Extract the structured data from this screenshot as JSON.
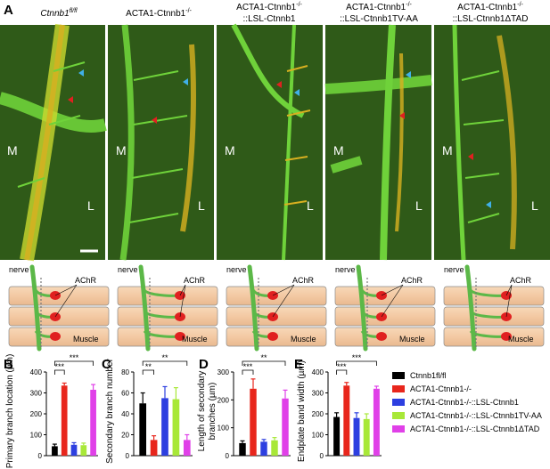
{
  "panel_a": {
    "letter": "A",
    "region_left": "M",
    "region_right": "L",
    "columns": [
      {
        "title_line1": "Ctnnb1",
        "title_sup": "fl/fl",
        "title_line2": ""
      },
      {
        "title_line1": "ACTA1-Ctnnb1",
        "title_sup": "-/-",
        "title_line2": ""
      },
      {
        "title_line1": "ACTA1-Ctnnb1",
        "title_sup": "-/-",
        "title_line2": "::LSL-Ctnnb1"
      },
      {
        "title_line1": "ACTA1-Ctnnb1",
        "title_sup": "-/-",
        "title_line2": "::LSL-Ctnnb1TV-AA"
      },
      {
        "title_line1": "ACTA1-Ctnnb1",
        "title_sup": "-/-",
        "title_line2": "::LSL-Ctnnb1ΔTAD"
      }
    ],
    "colors": {
      "background": "#2f5a18",
      "nerve": "#6fd23a",
      "endplate": "#e0c020",
      "arrow_red": "#e02020",
      "arrow_blue": "#40b0e8"
    }
  },
  "schematic": {
    "nerve_label": "nerve",
    "achr_label": "AChR",
    "muscle_label": "Muscle",
    "colors": {
      "fiber": "#f3c9a3",
      "nerve": "#5cb848",
      "achr": "#e02020"
    }
  },
  "panels": {
    "B": {
      "letter": "B",
      "ylabel": "Primary branch location (µm)",
      "significance": [
        "***",
        "***"
      ]
    },
    "C": {
      "letter": "C",
      "ylabel_line1": "Secondary branch number",
      "ylabel_line2": "",
      "significance": [
        "**",
        "**"
      ]
    },
    "D": {
      "letter": "D",
      "ylabel_line1": "Length of secondary",
      "ylabel_line2": "branches (µm)",
      "significance": [
        "***",
        "**"
      ]
    },
    "E": {
      "letter": "E",
      "ylabel": "Endplate band width (µm)",
      "significance": [
        "***",
        "***"
      ]
    }
  },
  "legend": [
    {
      "label": "Ctnnb1fl/fl",
      "color": "#000000"
    },
    {
      "label": "ACTA1-Ctnnb1-/-",
      "color": "#e8261c"
    },
    {
      "label": "ACTA1-Ctnnb1-/-::LSL-Ctnnb1",
      "color": "#2d3fe0"
    },
    {
      "label": "ACTA1-Ctnnb1-/-::LSL-Ctnnb1TV-AA",
      "color": "#a8e838"
    },
    {
      "label": "ACTA1-Ctnnb1-/-::LSL-Ctnnb1ΔTAD",
      "color": "#e040e8"
    }
  ],
  "chart_data": [
    {
      "type": "bar",
      "panel": "B",
      "ylabel": "Primary branch location (µm)",
      "ylim": [
        0,
        400
      ],
      "yticks": [
        0,
        100,
        200,
        300,
        400
      ],
      "values": [
        45,
        335,
        52,
        50,
        315
      ],
      "errors": [
        10,
        12,
        10,
        10,
        25
      ],
      "colors": [
        "#000000",
        "#e8261c",
        "#2d3fe0",
        "#a8e838",
        "#e040e8"
      ]
    },
    {
      "type": "bar",
      "panel": "C",
      "ylabel": "Secondary branch number",
      "ylim": [
        0,
        80
      ],
      "yticks": [
        0,
        20,
        40,
        60,
        80
      ],
      "values": [
        50,
        15,
        55,
        54,
        15
      ],
      "errors": [
        10,
        4,
        11,
        11,
        5
      ],
      "colors": [
        "#000000",
        "#e8261c",
        "#2d3fe0",
        "#a8e838",
        "#e040e8"
      ]
    },
    {
      "type": "bar",
      "panel": "D",
      "ylabel": "Length of secondary branches (µm)",
      "ylim": [
        0,
        300
      ],
      "yticks": [
        0,
        100,
        200,
        300
      ],
      "values": [
        45,
        240,
        50,
        55,
        205
      ],
      "errors": [
        8,
        35,
        8,
        10,
        30
      ],
      "colors": [
        "#000000",
        "#e8261c",
        "#2d3fe0",
        "#a8e838",
        "#e040e8"
      ]
    },
    {
      "type": "bar",
      "panel": "E",
      "ylabel": "Endplate band width (µm)",
      "ylim": [
        0,
        400
      ],
      "yticks": [
        0,
        100,
        200,
        300,
        400
      ],
      "values": [
        185,
        335,
        180,
        175,
        320
      ],
      "errors": [
        20,
        15,
        25,
        25,
        12
      ],
      "colors": [
        "#000000",
        "#e8261c",
        "#2d3fe0",
        "#a8e838",
        "#e040e8"
      ]
    }
  ]
}
